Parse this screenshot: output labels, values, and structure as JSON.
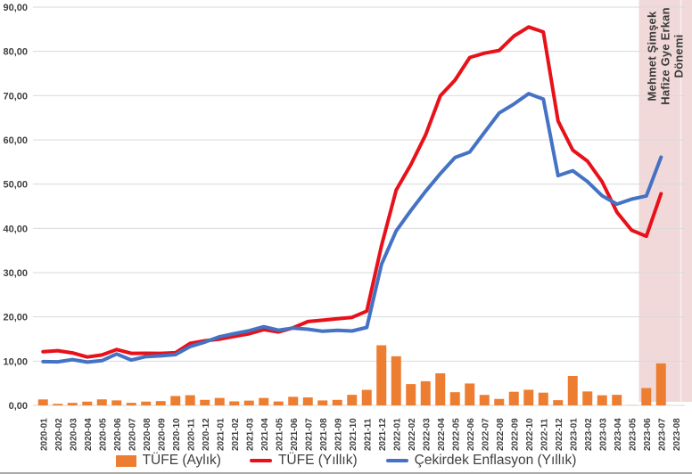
{
  "chart_data": {
    "type": "combo",
    "title": "",
    "xlabel": "",
    "ylabel": "",
    "ylim": [
      0,
      90
    ],
    "grid": "horizontal",
    "legend_position": "bottom",
    "y_ticks": [
      {
        "value": 0,
        "label": "0,00"
      },
      {
        "value": 10,
        "label": "10,00"
      },
      {
        "value": 20,
        "label": "20,00"
      },
      {
        "value": 30,
        "label": "30,00"
      },
      {
        "value": 40,
        "label": "40,00"
      },
      {
        "value": 50,
        "label": "50,00"
      },
      {
        "value": 60,
        "label": "60,00"
      },
      {
        "value": 70,
        "label": "70,00"
      },
      {
        "value": 80,
        "label": "80,00"
      },
      {
        "value": 90,
        "label": "90,00"
      }
    ],
    "categories": [
      "2020-01",
      "2020-02",
      "2020-03",
      "2020-04",
      "2020-05",
      "2020-06",
      "2020-07",
      "2020-08",
      "2020-09",
      "2020-10",
      "2020-11",
      "2020-12",
      "2021-01",
      "2021-02",
      "2021-03",
      "2021-04",
      "2021-05",
      "2021-06",
      "2021-07",
      "2021-08",
      "2021-09",
      "2021-10",
      "2021-11",
      "2021-12",
      "2022-01",
      "2022-02",
      "2022-03",
      "2022-04",
      "2022-05",
      "2022-06",
      "2022-07",
      "2022-08",
      "2022-09",
      "2022-10",
      "2022-11",
      "2022-12",
      "2023-01",
      "2023-02",
      "2023-03",
      "2023-04",
      "2023-05",
      "2023-06",
      "2023-07",
      "2023-08"
    ],
    "series": [
      {
        "name": "TÜFE (Aylık)",
        "type": "bar",
        "color": "#ED7D31",
        "values": [
          1.35,
          0.35,
          0.57,
          0.85,
          1.36,
          1.13,
          0.58,
          0.86,
          0.97,
          2.13,
          2.3,
          1.25,
          1.68,
          0.91,
          1.08,
          1.68,
          0.89,
          1.94,
          1.8,
          1.12,
          1.25,
          2.39,
          3.51,
          13.58,
          11.1,
          4.81,
          5.46,
          7.25,
          2.98,
          4.95,
          2.37,
          1.46,
          3.08,
          3.54,
          2.88,
          1.18,
          6.65,
          3.15,
          2.29,
          2.39,
          0.04,
          3.92,
          9.49,
          null
        ]
      },
      {
        "name": "TÜFE (Yıllık)",
        "type": "line",
        "color": "#E8111A",
        "values": [
          12.15,
          12.37,
          11.86,
          10.94,
          11.39,
          12.62,
          11.76,
          11.77,
          11.75,
          11.89,
          14.03,
          14.6,
          14.97,
          15.61,
          16.19,
          17.14,
          16.59,
          17.53,
          18.95,
          19.25,
          19.58,
          19.89,
          21.31,
          36.08,
          48.69,
          54.44,
          61.14,
          69.97,
          73.5,
          78.62,
          79.6,
          80.21,
          83.45,
          85.51,
          84.39,
          64.27,
          57.68,
          55.18,
          50.51,
          43.68,
          39.59,
          38.21,
          47.83,
          null
        ]
      },
      {
        "name": "Çekirdek Enflasyon (Yıllık)",
        "type": "line",
        "color": "#4472C4",
        "values": [
          9.88,
          9.85,
          10.35,
          9.78,
          10.1,
          11.62,
          10.25,
          11.03,
          11.2,
          11.48,
          13.3,
          14.31,
          15.53,
          16.21,
          16.88,
          17.77,
          16.99,
          17.47,
          17.22,
          16.76,
          16.98,
          16.82,
          17.62,
          31.88,
          39.45,
          44.05,
          48.39,
          52.37,
          56.04,
          57.26,
          61.69,
          66.09,
          68.09,
          70.45,
          69.2,
          51.93,
          53.04,
          50.58,
          47.36,
          45.48,
          46.62,
          47.33,
          56.09,
          null
        ]
      }
    ],
    "annotation": {
      "text": "Mehmet Şimşek\nHafize Gye Erkan\nDönemi",
      "region_start_category": "2023-06",
      "region_color": "#F2D9D9",
      "text_rotation": -90
    },
    "colors": {
      "gridline": "#D9D9D9",
      "axis_text": "#404040",
      "legend_text": "#404040"
    }
  }
}
